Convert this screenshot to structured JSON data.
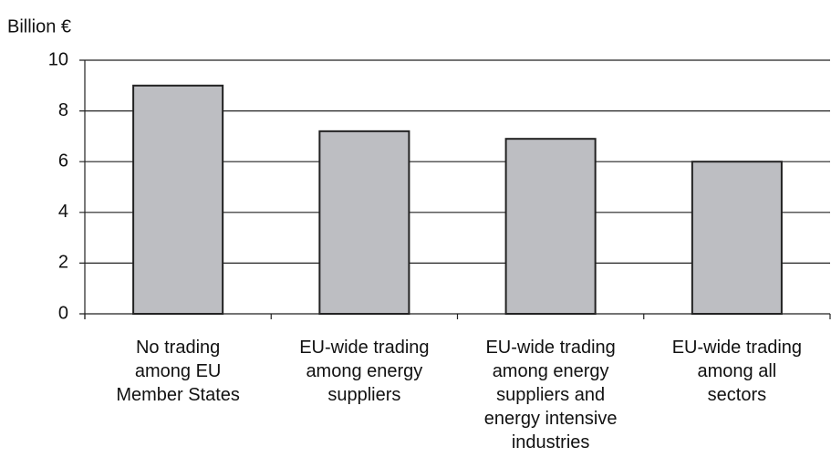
{
  "chart_data": {
    "type": "bar",
    "y_label": "Billion €",
    "categories": [
      "No trading\namong EU\nMember States",
      "EU-wide trading\namong energy\nsuppliers",
      "EU-wide trading\namong energy\nsuppliers and\nenergy intensive\nindustries",
      "EU-wide trading\namong all\nsectors"
    ],
    "values": [
      9,
      7.2,
      6.9,
      6.0
    ],
    "color": "#bdbec2",
    "ylim": [
      0,
      10
    ],
    "yticks": [
      0,
      2,
      4,
      6,
      8,
      10
    ],
    "grid": true
  }
}
